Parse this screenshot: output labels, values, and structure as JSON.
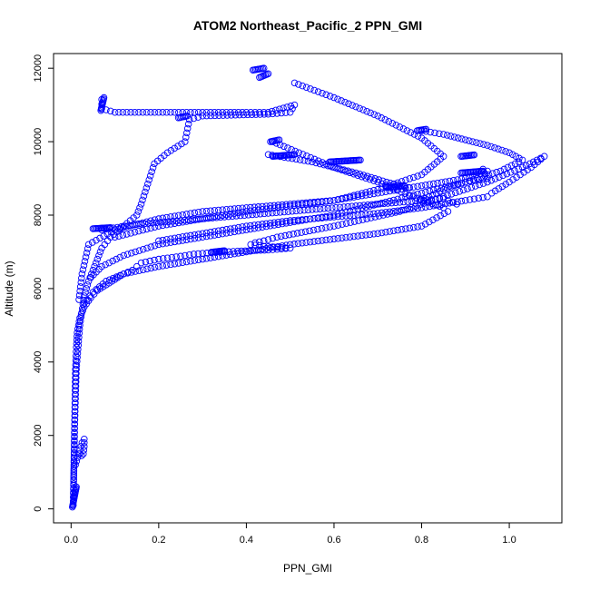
{
  "chart_data": {
    "type": "scatter",
    "title": "ATOM2 Northeast_Pacific_2 PPN_GMI",
    "xlabel": "PPN_GMI",
    "ylabel": "Altitude (m)",
    "xlim": [
      -0.04,
      1.12
    ],
    "ylim": [
      -380,
      12400
    ],
    "x_ticks": [
      0.0,
      0.2,
      0.4,
      0.6,
      0.8,
      1.0
    ],
    "x_tick_labels": [
      "0.0",
      "0.2",
      "0.4",
      "0.6",
      "0.8",
      "1.0"
    ],
    "y_ticks": [
      0,
      2000,
      4000,
      6000,
      8000,
      10000,
      12000
    ],
    "y_tick_labels": [
      "0",
      "2000",
      "4000",
      "6000",
      "8000",
      "10000",
      "12000"
    ],
    "grid": false,
    "marker": "open-circle",
    "color": "#0000ff",
    "series": [
      {
        "x": [
          0.005,
          0.006,
          0.007,
          0.008,
          0.009,
          0.01,
          0.012,
          0.014,
          0.02,
          0.03,
          0.045,
          0.06,
          0.08,
          0.1,
          0.12,
          0.14,
          0.15,
          0.16,
          0.2,
          0.25,
          0.28,
          0.3,
          0.33,
          0.38,
          0.45,
          0.5,
          0.44,
          0.41,
          0.42,
          0.44,
          0.47,
          0.6,
          0.75,
          0.85,
          0.95,
          1.03,
          1.08,
          1.05,
          1.0,
          0.96
        ],
        "y": [
          100,
          800,
          1500,
          2300,
          3000,
          3800,
          4400,
          4800,
          5200,
          5500,
          5750,
          5950,
          6100,
          6250,
          6400,
          6500,
          6600,
          6700,
          6800,
          6880,
          6940,
          6960,
          6980,
          7020,
          7050,
          7100,
          7150,
          7200,
          7250,
          7300,
          7400,
          7700,
          8100,
          8500,
          8900,
          9300,
          9600,
          9300,
          8900,
          8600
        ]
      },
      {
        "x": [
          0.005,
          0.008,
          0.012,
          0.02,
          0.03,
          0.04,
          0.05,
          0.06,
          0.07,
          0.09,
          0.12,
          0.15,
          0.16,
          0.19,
          0.22,
          0.26,
          0.27,
          0.3,
          0.45,
          0.5,
          0.51,
          0.45,
          0.4,
          0.3,
          0.2,
          0.1,
          0.07,
          0.07
        ],
        "y": [
          200,
          2200,
          3800,
          5000,
          5800,
          6200,
          6500,
          6800,
          7100,
          7400,
          7700,
          8000,
          8300,
          9400,
          9700,
          10000,
          10600,
          10700,
          10750,
          10800,
          11000,
          10800,
          10800,
          10800,
          10800,
          10800,
          10900,
          11150
        ]
      },
      {
        "x": [
          0.51,
          0.6,
          0.7,
          0.8,
          0.85,
          0.8,
          0.7,
          0.6,
          0.5,
          0.4,
          0.3,
          0.2,
          0.1,
          0.04,
          0.025,
          0.018
        ],
        "y": [
          11600,
          11200,
          10700,
          10100,
          9600,
          9100,
          8700,
          8400,
          8300,
          8200,
          8100,
          7900,
          7600,
          7200,
          6400,
          5700
        ]
      },
      {
        "x": [
          0.46,
          0.52,
          0.6,
          0.7,
          0.78,
          0.85,
          0.86,
          0.8,
          0.7,
          0.6,
          0.5,
          0.4,
          0.3,
          0.2,
          0.12,
          0.08,
          0.05,
          0.03
        ],
        "y": [
          10000,
          9700,
          9300,
          8900,
          8500,
          8200,
          8100,
          7700,
          7500,
          7350,
          7200,
          7000,
          6800,
          6600,
          6400,
          6200,
          5900,
          5600
        ]
      },
      {
        "x": [
          0.8,
          0.85,
          0.9,
          0.95,
          1.0,
          1.03,
          0.98,
          0.9,
          0.8,
          0.7,
          0.6,
          0.5,
          0.4,
          0.3,
          0.2,
          0.12,
          0.07,
          0.045
        ],
        "y": [
          10300,
          10200,
          10050,
          9900,
          9700,
          9500,
          9200,
          8900,
          8600,
          8300,
          8000,
          7800,
          7600,
          7400,
          7200,
          6900,
          6600,
          6300
        ]
      },
      {
        "x": [
          0.07,
          0.15,
          0.25,
          0.35,
          0.45,
          0.55,
          0.65,
          0.75,
          0.85,
          0.88
        ],
        "y": [
          7600,
          7750,
          7850,
          7950,
          8050,
          8150,
          8250,
          8350,
          8450,
          8300
        ]
      },
      {
        "x": [
          0.45,
          0.55,
          0.65,
          0.72,
          0.77
        ],
        "y": [
          9650,
          9450,
          9150,
          8900,
          8750
        ]
      },
      {
        "x": [
          0.2,
          0.3,
          0.4,
          0.5,
          0.6,
          0.7,
          0.8,
          0.9,
          0.95
        ],
        "y": [
          7300,
          7500,
          7700,
          7850,
          7950,
          8050,
          8200,
          8400,
          8500
        ]
      },
      {
        "x": [
          0.1,
          0.2,
          0.3,
          0.4,
          0.5,
          0.6,
          0.7,
          0.8,
          0.9,
          0.95,
          0.94,
          0.95,
          0.9,
          0.85,
          0.8
        ],
        "y": [
          7400,
          7700,
          7900,
          8100,
          8250,
          8400,
          8600,
          8800,
          9000,
          9200,
          9250,
          9000,
          8900,
          8700,
          8400
        ]
      },
      {
        "x": [
          0.01,
          0.015,
          0.02,
          0.025,
          0.03,
          0.03,
          0.028,
          0.024,
          0.02
        ],
        "y": [
          1200,
          1400,
          1600,
          1800,
          1900,
          1700,
          1500,
          1450,
          1500
        ]
      }
    ],
    "clusters": [
      {
        "x": [
          0.415,
          0.44
        ],
        "y": [
          11950,
          12000
        ]
      },
      {
        "x": [
          0.43,
          0.45
        ],
        "y": [
          11750,
          11850
        ]
      },
      {
        "x": [
          0.068,
          0.075
        ],
        "y": [
          10850,
          11200
        ]
      },
      {
        "x": [
          0.245,
          0.265
        ],
        "y": [
          10650,
          10700
        ]
      },
      {
        "x": [
          0.455,
          0.475
        ],
        "y": [
          10000,
          10050
        ]
      },
      {
        "x": [
          0.46,
          0.51
        ],
        "y": [
          9600,
          9650
        ]
      },
      {
        "x": [
          0.59,
          0.66
        ],
        "y": [
          9450,
          9500
        ]
      },
      {
        "x": [
          0.72,
          0.76
        ],
        "y": [
          8750,
          8800
        ]
      },
      {
        "x": [
          0.79,
          0.81
        ],
        "y": [
          10300,
          10340
        ]
      },
      {
        "x": [
          0.89,
          0.92
        ],
        "y": [
          9600,
          9640
        ]
      },
      {
        "x": [
          0.89,
          0.94
        ],
        "y": [
          9150,
          9200
        ]
      },
      {
        "x": [
          0.05,
          0.09
        ],
        "y": [
          7630,
          7660
        ]
      },
      {
        "x": [
          0.32,
          0.35
        ],
        "y": [
          6990,
          7030
        ]
      },
      {
        "x": [
          0.003,
          0.012
        ],
        "y": [
          50,
          600
        ]
      }
    ]
  }
}
